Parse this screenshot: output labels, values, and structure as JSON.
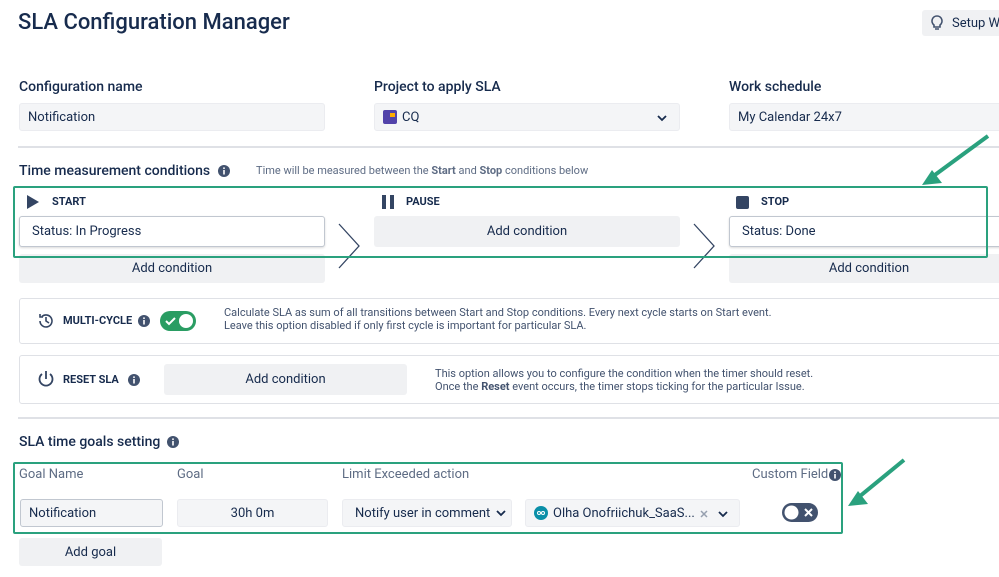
{
  "header": {
    "title": "SLA Configuration Manager",
    "setup_button": "Setup Wi"
  },
  "config": {
    "name": {
      "label": "Configuration name",
      "value": "Notification"
    },
    "project": {
      "label": "Project to apply SLA",
      "value": "CQ"
    },
    "schedule": {
      "label": "Work schedule",
      "value": "My Calendar 24x7"
    }
  },
  "time_conditions": {
    "title": "Time measurement conditions",
    "hint": [
      "Time will be measured between the ",
      "Start",
      " and ",
      "Stop",
      " conditions below"
    ],
    "start": {
      "label": "START",
      "condition": "Status: In Progress",
      "add": "Add condition"
    },
    "pause": {
      "label": "PAUSE",
      "add": "Add condition"
    },
    "stop": {
      "label": "STOP",
      "condition": "Status: Done",
      "add": "Add condition"
    }
  },
  "multi_cycle": {
    "label": "MULTI-CYCLE",
    "description": [
      "Calculate SLA as sum of all transitions between Start and Stop conditions. Every next cycle starts on Start event.",
      "Leave this option disabled if only first cycle is important for particular SLA."
    ]
  },
  "reset_sla": {
    "label": "RESET SLA",
    "add": "Add condition",
    "description": [
      "This option allows you to configure the condition when the timer should reset.",
      "Once the ",
      "Reset",
      " event occurs, the timer stops ticking for the particular Issue."
    ]
  },
  "goals": {
    "title": "SLA time goals setting",
    "columns": [
      "Goal Name",
      "Goal",
      "Limit Exceeded action",
      "Custom Field"
    ],
    "rows": [
      [
        "Notification",
        "30h 0m",
        "Notify user in comment",
        "Olha Onofriichuk_SaaS..."
      ]
    ],
    "add": "Add goal"
  }
}
